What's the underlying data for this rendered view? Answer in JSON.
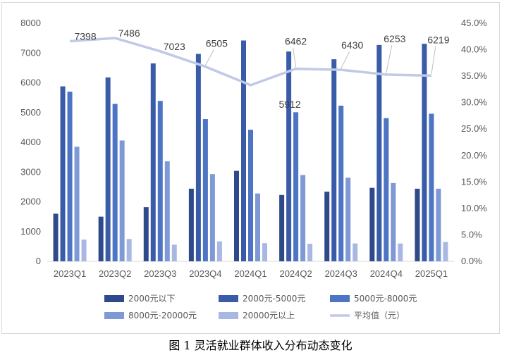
{
  "caption": "图 1  灵活就业群体收入分布动态变化",
  "chart_data": {
    "type": "bar",
    "categories": [
      "2023Q1",
      "2023Q2",
      "2023Q3",
      "2023Q4",
      "2024Q1",
      "2024Q2",
      "2024Q3",
      "2024Q4",
      "2025Q1"
    ],
    "ylim": [
      0,
      8000
    ],
    "yticks": [
      "0",
      "1000",
      "2000",
      "3000",
      "4000",
      "5000",
      "6000",
      "7000",
      "8000"
    ],
    "y2lim": [
      0,
      0.45
    ],
    "y2ticks": [
      "0.0%",
      "5.0%",
      "10.0%",
      "15.0%",
      "20.0%",
      "25.0%",
      "30.0%",
      "35.0%",
      "40.0%",
      "45.0%"
    ],
    "grid": false,
    "legend_position": "bottom",
    "series": [
      {
        "name": "2000元以下",
        "color": "#2f4a8a",
        "axis": "left",
        "values": [
          1600,
          1500,
          1820,
          2440,
          3040,
          2230,
          2340,
          2470,
          2440
        ]
      },
      {
        "name": "2000元-5000元",
        "color": "#3a5ca8",
        "axis": "left",
        "values": [
          5880,
          6180,
          6650,
          6970,
          7420,
          7050,
          6790,
          7270,
          7310
        ]
      },
      {
        "name": "5000元-8000元",
        "color": "#4e74c4",
        "axis": "left",
        "values": [
          5700,
          5290,
          5390,
          4780,
          4420,
          5010,
          5230,
          4810,
          4960
        ]
      },
      {
        "name": "8000元-20000元",
        "color": "#7e99d6",
        "axis": "left",
        "values": [
          3850,
          4060,
          3360,
          2930,
          2280,
          2900,
          2810,
          2630,
          2440
        ]
      },
      {
        "name": "20000元以上",
        "color": "#a9b8e3",
        "axis": "left",
        "values": [
          730,
          750,
          560,
          670,
          610,
          590,
          600,
          600,
          650
        ]
      },
      {
        "name": "平均值（元）",
        "color": "#c0cae6",
        "type": "line",
        "axis": "right",
        "values": [
          0.416,
          0.422,
          0.397,
          0.368,
          0.333,
          0.364,
          0.362,
          0.353,
          0.351
        ],
        "labels": [
          "7398",
          "7486",
          "7023",
          "6505",
          "5912",
          "6462",
          "6430",
          "6253",
          "6219"
        ]
      }
    ]
  }
}
